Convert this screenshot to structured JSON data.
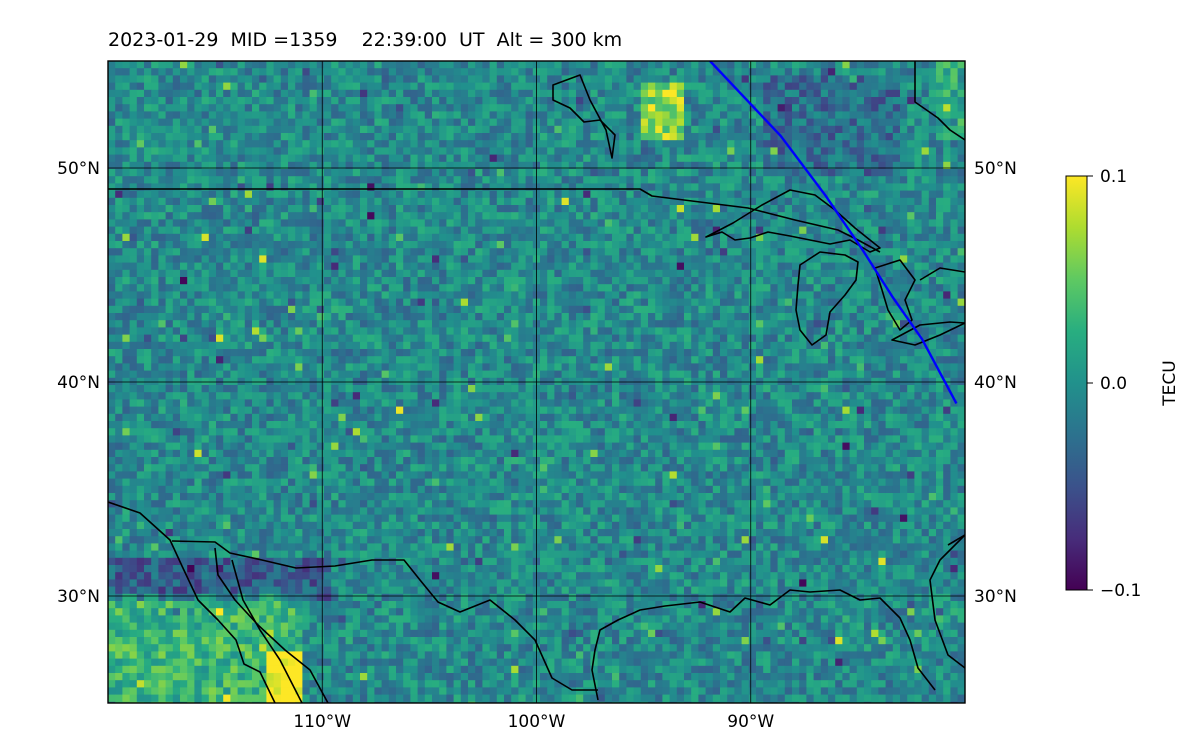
{
  "title": "2023-01-29  MID =1359    22:39:00  UT  Alt = 300 km",
  "map": {
    "lon_range": [
      -120,
      -80
    ],
    "lat_range": [
      25,
      55
    ],
    "lon_ticks": [
      {
        "value": -110,
        "label": "110°W"
      },
      {
        "value": -100,
        "label": "100°W"
      },
      {
        "value": -90,
        "label": "90°W"
      }
    ],
    "lat_ticks": [
      {
        "value": 50,
        "label": "50°N"
      },
      {
        "value": 40,
        "label": "40°N"
      },
      {
        "value": 30,
        "label": "30°N"
      }
    ],
    "grid": true,
    "track_color": "#0000ff",
    "track": [
      [
        -91.9,
        55
      ],
      [
        -88.6,
        51.5
      ],
      [
        -86.5,
        48.7
      ],
      [
        -84.8,
        46.2
      ],
      [
        -83.4,
        44.0
      ],
      [
        -82.0,
        42.0
      ],
      [
        -80.4,
        39.0
      ]
    ]
  },
  "colorbar": {
    "label": "TECU",
    "min": -0.1,
    "max": 0.1,
    "ticks": [
      {
        "value": 0.1,
        "label": "0.1"
      },
      {
        "value": 0.0,
        "label": "0.0"
      },
      {
        "value": -0.1,
        "label": "−0.1"
      }
    ],
    "colormap": "viridis"
  }
}
